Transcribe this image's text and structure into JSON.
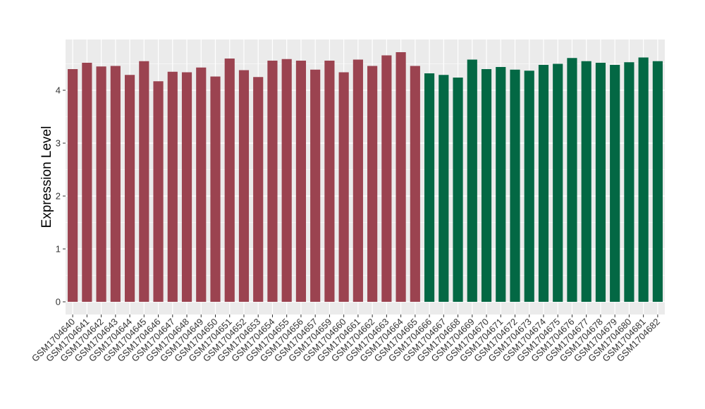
{
  "chart_data": {
    "type": "bar",
    "title": "",
    "xlabel": "",
    "ylabel": "Expression Level",
    "ylim": [
      0,
      4.9
    ],
    "yticks": [
      0,
      1,
      2,
      3,
      4
    ],
    "grid": true,
    "legend": "none",
    "categories": [
      "GSM1704640",
      "GSM1704641",
      "GSM1704642",
      "GSM1704643",
      "GSM1704644",
      "GSM1704645",
      "GSM1704646",
      "GSM1704647",
      "GSM1704648",
      "GSM1704649",
      "GSM1704650",
      "GSM1704651",
      "GSM1704652",
      "GSM1704653",
      "GSM1704654",
      "GSM1704655",
      "GSM1704656",
      "GSM1704657",
      "GSM1704659",
      "GSM1704660",
      "GSM1704661",
      "GSM1704662",
      "GSM1704663",
      "GSM1704664",
      "GSM1704665",
      "GSM1704666",
      "GSM1704667",
      "GSM1704668",
      "GSM1704669",
      "GSM1704670",
      "GSM1704671",
      "GSM1704672",
      "GSM1704673",
      "GSM1704674",
      "GSM1704675",
      "GSM1704676",
      "GSM1704677",
      "GSM1704678",
      "GSM1704679",
      "GSM1704680",
      "GSM1704681",
      "GSM1704682"
    ],
    "values": [
      4.4,
      4.52,
      4.45,
      4.46,
      4.29,
      4.55,
      4.17,
      4.35,
      4.34,
      4.43,
      4.26,
      4.6,
      4.38,
      4.25,
      4.56,
      4.59,
      4.56,
      4.39,
      4.56,
      4.34,
      4.58,
      4.46,
      4.66,
      4.72,
      4.46,
      4.32,
      4.29,
      4.24,
      4.58,
      4.4,
      4.44,
      4.39,
      4.37,
      4.48,
      4.5,
      4.61,
      4.55,
      4.52,
      4.48,
      4.53,
      4.62,
      4.55
    ],
    "groups": [
      0,
      0,
      0,
      0,
      0,
      0,
      0,
      0,
      0,
      0,
      0,
      0,
      0,
      0,
      0,
      0,
      0,
      0,
      0,
      0,
      0,
      0,
      0,
      0,
      0,
      1,
      1,
      1,
      1,
      1,
      1,
      1,
      1,
      1,
      1,
      1,
      1,
      1,
      1,
      1,
      1,
      1
    ],
    "colors": [
      "#9b4350",
      "#036844"
    ],
    "panel_background": "#ebebeb",
    "grid_color": "#ffffff"
  }
}
